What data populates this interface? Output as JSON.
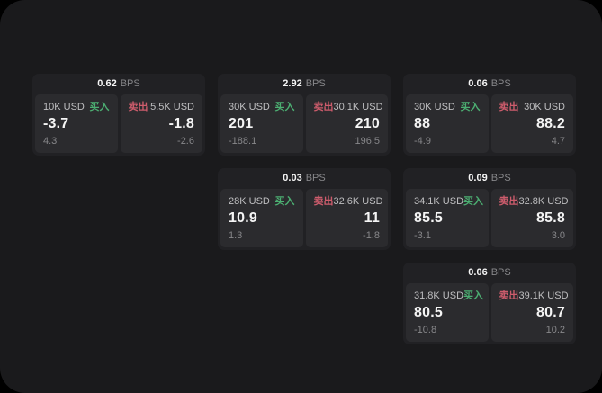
{
  "theme": {
    "background": "#000000",
    "window_bg": "#1a1a1c",
    "card_bg": "#212124",
    "panel_bg": "#2b2b2e",
    "text_primary": "#f5f5f5",
    "text_secondary": "#bfbfc1",
    "text_muted": "#87878a",
    "buy_color": "#4caf72",
    "sell_color": "#cd5c6c"
  },
  "cards": [
    {
      "row": 1,
      "col": 1,
      "bps_value": "0.62",
      "bps_unit": "BPS",
      "buy": {
        "amount": "10K USD",
        "side_label": "买入",
        "price": "-3.7",
        "change": "4.3"
      },
      "sell": {
        "side_label": "卖出",
        "amount": "5.5K USD",
        "price": "-1.8",
        "change": "-2.6"
      }
    },
    {
      "row": 1,
      "col": 2,
      "bps_value": "2.92",
      "bps_unit": "BPS",
      "buy": {
        "amount": "30K USD",
        "side_label": "买入",
        "price": "201",
        "change": "-188.1"
      },
      "sell": {
        "side_label": "卖出",
        "amount": "30.1K USD",
        "price": "210",
        "change": "196.5"
      }
    },
    {
      "row": 1,
      "col": 3,
      "bps_value": "0.06",
      "bps_unit": "BPS",
      "buy": {
        "amount": "30K USD",
        "side_label": "买入",
        "price": "88",
        "change": "-4.9"
      },
      "sell": {
        "side_label": "卖出",
        "amount": "30K USD",
        "price": "88.2",
        "change": "4.7"
      }
    },
    {
      "row": 2,
      "col": 2,
      "bps_value": "0.03",
      "bps_unit": "BPS",
      "buy": {
        "amount": "28K USD",
        "side_label": "买入",
        "price": "10.9",
        "change": "1.3"
      },
      "sell": {
        "side_label": "卖出",
        "amount": "32.6K USD",
        "price": "11",
        "change": "-1.8"
      }
    },
    {
      "row": 2,
      "col": 3,
      "bps_value": "0.09",
      "bps_unit": "BPS",
      "buy": {
        "amount": "34.1K USD",
        "side_label": "买入",
        "price": "85.5",
        "change": "-3.1"
      },
      "sell": {
        "side_label": "卖出",
        "amount": "32.8K USD",
        "price": "85.8",
        "change": "3.0"
      }
    },
    {
      "row": 3,
      "col": 3,
      "bps_value": "0.06",
      "bps_unit": "BPS",
      "buy": {
        "amount": "31.8K USD",
        "side_label": "买入",
        "price": "80.5",
        "change": "-10.8"
      },
      "sell": {
        "side_label": "卖出",
        "amount": "39.1K USD",
        "price": "80.7",
        "change": "10.2"
      }
    }
  ]
}
